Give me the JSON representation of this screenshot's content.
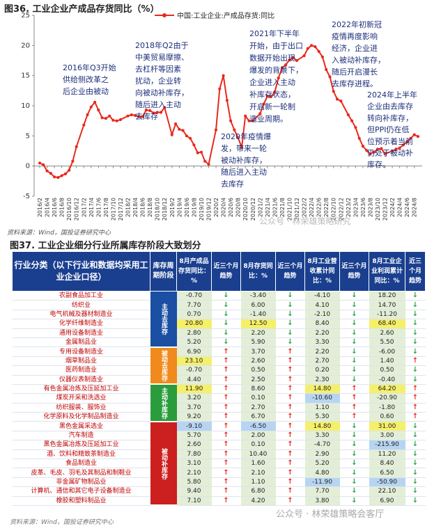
{
  "figure36": {
    "title": "图36. 工业企业产成品存货同比（%）",
    "source": "资料来源：Wind，国投证券研究中心",
    "watermark": "公众号 · 林荣雄策略研究"
  },
  "chart_data": {
    "type": "line",
    "title": "图36. 工业企业产成品存货同比（%）",
    "series_name": "中国:工业企业:产成品存货:同比",
    "color": "#e8291c",
    "ylim": [
      -5,
      25
    ],
    "yticks": [
      -5,
      0,
      5,
      10,
      15,
      20,
      25
    ],
    "x_labels": [
      "2016/2",
      "2016/4",
      "2016/6",
      "2016/8",
      "2016/10",
      "2016/12",
      "2017/2",
      "2017/4",
      "2017/6",
      "2017/8",
      "2017/10",
      "2017/12",
      "2018/2",
      "2018/4",
      "2018/6",
      "2018/8",
      "2018/10",
      "2018/12",
      "2019/2",
      "2019/4",
      "2019/6",
      "2019/8",
      "2019/10",
      "2019/12",
      "2020/2",
      "2020/4",
      "2020/6",
      "2020/8",
      "2020/10",
      "2020/12",
      "2021/2",
      "2021/4",
      "2021/6",
      "2021/8",
      "2021/10",
      "2021/12",
      "2022/2",
      "2022/4",
      "2022/6",
      "2022/8",
      "2022/10",
      "2022/12",
      "2023/2",
      "2023/4",
      "2023/6",
      "2023/8",
      "2023/10",
      "2023/12",
      "2024/2",
      "2024/4",
      "2024/6",
      "2024/8"
    ],
    "points": [
      [
        "2016/2",
        0.5
      ],
      [
        "2016/3",
        0.2
      ],
      [
        "2016/4",
        -0.8
      ],
      [
        "2016/5",
        -1.2
      ],
      [
        "2016/6",
        -1.8
      ],
      [
        "2016/7",
        -1.9
      ],
      [
        "2016/8",
        -1.6
      ],
      [
        "2016/9",
        -1.3
      ],
      [
        "2016/10",
        -0.7
      ],
      [
        "2016/11",
        0.8
      ],
      [
        "2016/12",
        3.2
      ],
      [
        "2017/2",
        6.8
      ],
      [
        "2017/3",
        8.5
      ],
      [
        "2017/4",
        9.8
      ],
      [
        "2017/5",
        10.6
      ],
      [
        "2017/6",
        9.3
      ],
      [
        "2017/7",
        8.0
      ],
      [
        "2017/8",
        7.9
      ],
      [
        "2017/9",
        8.3
      ],
      [
        "2017/10",
        7.6
      ],
      [
        "2017/11",
        7.5
      ],
      [
        "2017/12",
        7.7
      ],
      [
        "2018/2",
        8.3
      ],
      [
        "2018/3",
        8.5
      ],
      [
        "2018/4",
        8.4
      ],
      [
        "2018/5",
        8.2
      ],
      [
        "2018/6",
        8.2
      ],
      [
        "2018/7",
        9.3
      ],
      [
        "2018/8",
        9.2
      ],
      [
        "2018/9",
        8.8
      ],
      [
        "2018/10",
        8.9
      ],
      [
        "2018/11",
        8.9
      ],
      [
        "2018/12",
        9.7
      ],
      [
        "2019/2",
        5.2
      ],
      [
        "2019/3",
        7.0
      ],
      [
        "2019/4",
        6.1
      ],
      [
        "2019/5",
        5.9
      ],
      [
        "2019/6",
        5.0
      ],
      [
        "2019/7",
        4.6
      ],
      [
        "2019/8",
        3.5
      ],
      [
        "2019/9",
        2.2
      ],
      [
        "2019/10",
        2.3
      ],
      [
        "2019/11",
        0.8
      ],
      [
        "2019/12",
        0.3
      ],
      [
        "2020/2",
        6.0
      ],
      [
        "2020/3",
        12.8
      ],
      [
        "2020/4",
        15.0
      ],
      [
        "2020/5",
        10.9
      ],
      [
        "2020/6",
        7.5
      ],
      [
        "2020/7",
        6.0
      ],
      [
        "2020/8",
        4.7
      ],
      [
        "2020/9",
        3.1
      ],
      [
        "2020/10",
        8.3
      ],
      [
        "2020/11",
        7.5
      ],
      [
        "2020/12",
        7.5
      ],
      [
        "2021/2",
        8.7
      ],
      [
        "2021/3",
        10.3
      ],
      [
        "2021/4",
        11.6
      ],
      [
        "2021/5",
        11.5
      ],
      [
        "2021/6",
        12.3
      ],
      [
        "2021/7",
        14.6
      ],
      [
        "2021/8",
        16.3
      ],
      [
        "2021/9",
        16.8
      ],
      [
        "2021/10",
        17.6
      ],
      [
        "2021/11",
        18.0
      ],
      [
        "2021/12",
        17.5
      ],
      [
        "2022/2",
        18.3
      ],
      [
        "2022/3",
        19.5
      ],
      [
        "2022/4",
        20.0
      ],
      [
        "2022/5",
        19.8
      ],
      [
        "2022/6",
        19.0
      ],
      [
        "2022/7",
        18.1
      ],
      [
        "2022/8",
        16.0
      ],
      [
        "2022/9",
        14.8
      ],
      [
        "2022/10",
        12.4
      ],
      [
        "2022/11",
        11.1
      ],
      [
        "2022/12",
        10.8
      ],
      [
        "2023/2",
        8.5
      ],
      [
        "2023/3",
        7.5
      ],
      [
        "2023/4",
        6.4
      ],
      [
        "2023/5",
        4.6
      ],
      [
        "2023/6",
        3.3
      ],
      [
        "2023/7",
        2.6
      ],
      [
        "2023/8",
        2.0
      ],
      [
        "2023/9",
        2.3
      ],
      [
        "2023/10",
        2.8
      ],
      [
        "2023/11",
        2.9
      ],
      [
        "2023/12",
        2.0
      ],
      [
        "2024/2",
        2.5
      ],
      [
        "2024/3",
        2.8
      ],
      [
        "2024/4",
        3.0
      ],
      [
        "2024/5",
        3.5
      ],
      [
        "2024/6",
        4.0
      ],
      [
        "2024/7",
        4.6
      ],
      [
        "2024/8",
        5.2
      ],
      [
        "2024/9",
        4.9
      ]
    ],
    "annotations": [
      {
        "lines": [
          "2016年Q3开始",
          "供给侧改革之",
          "后企业由被动"
        ]
      },
      {
        "lines": [
          "2018年Q2由于",
          "中美贸易摩擦、",
          "去杠杆等因素",
          "扰动，企业转",
          "向被动补库存，",
          "随后进入主动",
          "去库存"
        ]
      },
      {
        "lines": [
          "2020年疫情爆",
          "发，带来一轮",
          "被动补库存，",
          "随后进入主动",
          "去库存"
        ]
      },
      {
        "lines": [
          "2021年下半年",
          "开始，由于出口",
          "数据开始出现",
          "爆发的背景下，",
          "企业进入主动",
          "补库存状态，",
          "开启新一轮制",
          "造业周期。"
        ]
      },
      {
        "lines": [
          "2022年初新冠",
          "疫情再度影响",
          "经济，企业进",
          "入被动补库存，",
          "随后开启漫长",
          "去库存进程。"
        ]
      },
      {
        "lines": [
          "2024年上半年",
          "企业由去库存",
          "转向补库存，",
          "但PPI仍在低",
          "位预示着当前",
          "仍处于被动补",
          "库存。"
        ]
      }
    ]
  },
  "figure37": {
    "title": "图37. 工业企业细分行业所属库存阶段大致划分",
    "source": "资料来源：Wind，国投证券研究中心",
    "watermark": "公众号 · 林荣雄策略会客厅",
    "headers": [
      "行业分类（以下行业和数据均采用工业企业口径）",
      "库存周期阶段",
      "8月产成品存货同比：%",
      "近三个月趋势",
      "8月存货同比：%",
      "近三个月趋势",
      "8月工业营收累计同比：%",
      "近三个月趋势",
      "8月工业企业利润累计同比：%",
      "近三个月趋势"
    ],
    "groups": [
      {
        "stage": "主动去库存",
        "color": "#1a4fa3",
        "rows": [
          [
            "农副食品加工业",
            "-0.70",
            "down",
            "-3.40",
            "down",
            "-4.10",
            "down",
            "18.20",
            "down"
          ],
          [
            "纺织业",
            "7.70",
            "down",
            "6.00",
            "down",
            "4.10",
            "down",
            "14.70",
            "down"
          ],
          [
            "电气机械及器材制造业",
            "0.70",
            "down",
            "-1.40",
            "down",
            "-2.10",
            "down",
            "-11.20",
            "down"
          ],
          [
            "化学纤维制造业",
            "20.80",
            "down",
            "12.50",
            "down",
            "8.40",
            "down",
            "68.40",
            "down"
          ],
          [
            "通用设备制造业",
            "2.80",
            "down",
            "2.20",
            "down",
            "2.20",
            "down",
            "2.60",
            "down"
          ],
          [
            "金属制品业",
            "5.20",
            "down",
            "5.90",
            "down",
            "3.30",
            "down",
            "5.50",
            "down"
          ]
        ]
      },
      {
        "stage": "被动去库存",
        "color": "#f08a1c",
        "rows": [
          [
            "专用设备制造业",
            "6.90",
            "up",
            "3.70",
            "up",
            "2.20",
            "down",
            "-6.00",
            "down"
          ],
          [
            "烟草制品业",
            "23.10",
            "up",
            "2.60",
            "up",
            "2.70",
            "down",
            "1.40",
            "up"
          ],
          [
            "医药制造业",
            "-0.70",
            "up",
            "0.50",
            "up",
            "0.20",
            "down",
            "0.50",
            "down"
          ],
          [
            "仪器仪表制造业",
            "4.40",
            "up",
            "2.50",
            "up",
            "2.30",
            "down",
            "-0.40",
            "down"
          ]
        ]
      },
      {
        "stage": "主动补库存",
        "color": "#2a9c3c",
        "rows": [
          [
            "有色金属冶炼及压延加工业",
            "11.90",
            "up",
            "8.60",
            "up",
            "14.80",
            "up",
            "64.20",
            "up"
          ],
          [
            "煤炭开采和洗选业",
            "3.20",
            "up",
            "0.10",
            "up",
            "-10.60",
            "up",
            "-20.90",
            "up"
          ],
          [
            "纺织服装、服饰业",
            "3.70",
            "up",
            "2.70",
            "up",
            "1.10",
            "up",
            "-1.80",
            "up"
          ],
          [
            "化学原料及化学制品制造业",
            "9.20",
            "up",
            "6.70",
            "up",
            "5.30",
            "up",
            "0.60",
            "up"
          ]
        ]
      },
      {
        "stage": "被动补库存",
        "color": "#cc1f1f",
        "rows": [
          [
            "黑色金属采选业",
            "-9.10",
            "up",
            "-6.50",
            "up",
            "14.80",
            "down",
            "31.00",
            "down"
          ],
          [
            "汽车制造",
            "5.70",
            "up",
            "2.00",
            "up",
            "3.30",
            "down",
            "3.00",
            "down"
          ],
          [
            "黑色金属冶炼及压延加工业",
            "2.60",
            "up",
            "0.10",
            "up",
            "-4.70",
            "down",
            "-215.90",
            "down"
          ],
          [
            "酒、饮料和精致茶制造业",
            "7.80",
            "up",
            "10.40",
            "up",
            "2.90",
            "down",
            "11.20",
            "down"
          ],
          [
            "食品制造业",
            "3.10",
            "up",
            "1.60",
            "up",
            "5.20",
            "down",
            "8.40",
            "down"
          ],
          [
            "皮革、毛皮、羽毛及其制品和制鞋业",
            "2.10",
            "up",
            "2.10",
            "up",
            "4.80",
            "down",
            "6.50",
            "down"
          ],
          [
            "非金属矿物制品业",
            "5.80",
            "up",
            "1.10",
            "up",
            "-11.90",
            "down",
            "-50.90",
            "down"
          ],
          [
            "计算机、通信和其它电子设备制造业",
            "9.40",
            "up",
            "6.80",
            "up",
            "7.70",
            "down",
            "22.10",
            "down"
          ],
          [
            "橡胶和塑料制品业",
            "7.10",
            "up",
            "4.20",
            "up",
            "3.80",
            "down",
            "6.90",
            "down"
          ]
        ]
      }
    ]
  }
}
